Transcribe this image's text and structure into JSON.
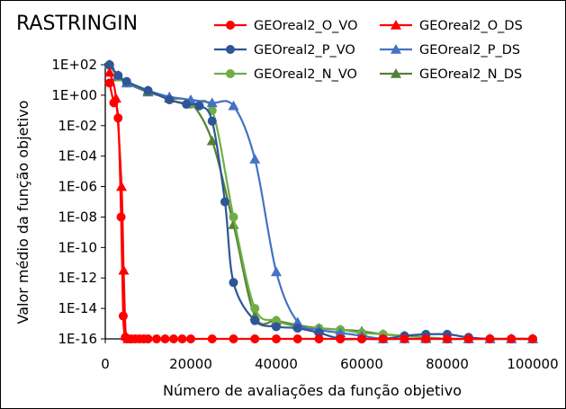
{
  "chart_data": {
    "type": "line",
    "title": "RASTRINGIN",
    "xlabel": "Número de avaliações da função objetivo",
    "ylabel": "Valor médio da função objetivo",
    "xlim": [
      0,
      100000
    ],
    "ylim_log10": [
      -16,
      2
    ],
    "x_ticks": [
      0,
      20000,
      40000,
      60000,
      80000,
      100000
    ],
    "x_tick_labels": [
      "0",
      "20000",
      "40000",
      "60000",
      "80000",
      "100000"
    ],
    "y_ticks_log10": [
      2,
      0,
      -2,
      -4,
      -6,
      -8,
      -10,
      -12,
      -14,
      -16
    ],
    "y_tick_labels": [
      "1E+02",
      "1E+00",
      "1E-02",
      "1E-04",
      "1E-06",
      "1E-08",
      "1E-10",
      "1E-12",
      "1E-14",
      "1E-16"
    ],
    "series": [
      {
        "name": "GEOreal2_O_VO",
        "color": "#FF0000",
        "marker": "circle",
        "x": [
          1000,
          2000,
          3000,
          3700,
          4200,
          4700,
          5200,
          6000,
          7000,
          8000,
          9000,
          10000,
          12000,
          14000,
          16000,
          18000,
          20000,
          25000,
          30000,
          35000,
          40000,
          45000,
          50000,
          55000,
          60000,
          65000,
          70000,
          75000,
          80000,
          85000,
          90000,
          95000,
          100000
        ],
        "log10y": [
          0.8,
          -0.5,
          -1.5,
          -8.0,
          -14.5,
          -15.9,
          -16,
          -16,
          -16,
          -16,
          -16,
          -16,
          -16,
          -16,
          -16,
          -16,
          -16,
          -16,
          -16,
          -16,
          -16,
          -16,
          -16,
          -16,
          -16,
          -16,
          -16,
          -16,
          -16,
          -16,
          -16,
          -16,
          -16
        ]
      },
      {
        "name": "GEOreal2_O_DS",
        "color": "#FF0000",
        "marker": "triangle",
        "x": [
          1000,
          2500,
          3800,
          4300,
          4800,
          5300
        ],
        "log10y": [
          1.5,
          -0.2,
          -6.0,
          -11.5,
          -15.8,
          -16
        ]
      },
      {
        "name": "GEOreal2_P_VO",
        "color": "#2E5597",
        "marker": "circle",
        "x": [
          1000,
          3000,
          5000,
          10000,
          15000,
          19000,
          22000,
          25000,
          28000,
          30000,
          35000,
          40000,
          45000,
          50000,
          55000,
          60000,
          65000,
          70000,
          75000,
          80000,
          85000,
          90000,
          95000,
          100000
        ],
        "log10y": [
          2.0,
          1.3,
          0.9,
          0.3,
          -0.3,
          -0.6,
          -0.7,
          -1.7,
          -7.0,
          -12.3,
          -14.8,
          -15.2,
          -15.3,
          -15.6,
          -16.0,
          -16.0,
          -16.0,
          -15.8,
          -15.7,
          -15.7,
          -15.9,
          -16.0,
          -16.0,
          -16.0
        ]
      },
      {
        "name": "GEOreal2_P_DS",
        "color": "#4472C4",
        "marker": "triangle",
        "x": [
          1000,
          3000,
          5000,
          10000,
          15000,
          20000,
          25000,
          30000,
          35000,
          40000,
          45000,
          50000,
          55000,
          60000,
          65000,
          70000,
          75000,
          80000,
          85000,
          90000,
          95000,
          100000
        ],
        "log10y": [
          2.0,
          1.3,
          0.8,
          0.3,
          -0.1,
          -0.3,
          -0.5,
          -0.7,
          -4.2,
          -11.6,
          -14.9,
          -15.4,
          -15.6,
          -15.8,
          -16.0,
          -16.0,
          -16.0,
          -16.0,
          -16.0,
          -16.0,
          -16.0,
          -16.0
        ]
      },
      {
        "name": "GEOreal2_N_VO",
        "color": "#70AD47",
        "marker": "circle",
        "x": [
          1000,
          3000,
          5000,
          10000,
          15000,
          20000,
          25000,
          30000,
          35000,
          40000,
          45000,
          50000,
          55000,
          60000,
          65000,
          70000,
          75000,
          80000,
          85000,
          90000,
          95000,
          100000
        ],
        "log10y": [
          2.0,
          1.2,
          0.8,
          0.3,
          -0.3,
          -0.6,
          -1.0,
          -8.0,
          -14.0,
          -14.8,
          -15.2,
          -15.3,
          -15.4,
          -15.6,
          -15.7,
          -15.8,
          -15.9,
          -16.0,
          -16.0,
          -16.0,
          -16.0,
          -16.0
        ]
      },
      {
        "name": "GEOreal2_N_DS",
        "color": "#548235",
        "marker": "triangle",
        "x": [
          1000,
          3000,
          5000,
          10000,
          15000,
          20000,
          25000,
          30000,
          35000,
          40000,
          45000,
          50000,
          55000,
          60000,
          65000,
          70000,
          75000,
          80000,
          85000,
          90000,
          95000,
          100000
        ],
        "log10y": [
          2.0,
          1.2,
          0.8,
          0.2,
          -0.2,
          -0.5,
          -3.0,
          -8.5,
          -14.5,
          -14.8,
          -15.1,
          -15.3,
          -15.4,
          -15.5,
          -15.7,
          -15.8,
          -15.9,
          -16.0,
          -16.0,
          -16.0,
          -16.0,
          -16.0
        ]
      }
    ],
    "legend_position": "top-right"
  }
}
